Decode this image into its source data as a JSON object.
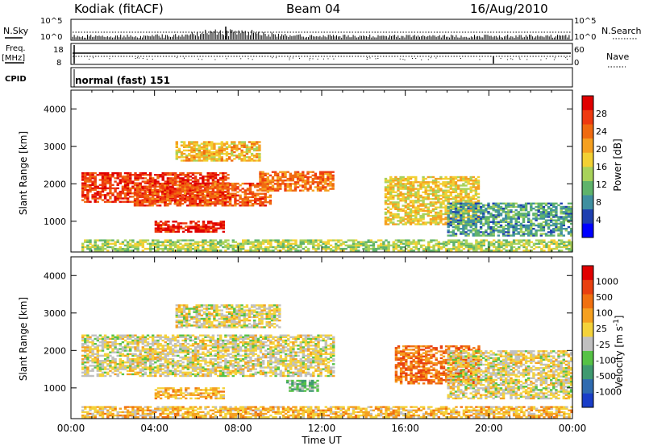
{
  "header": {
    "station": "Kodiak (fitACF)",
    "beam": "Beam 04",
    "date": "16/Aug/2010"
  },
  "strip_labels": {
    "nsky": "N.Sky",
    "nsearch": "N.Search",
    "freq": "Freq.",
    "freq_unit": "[MHz]",
    "nave": "Nave",
    "cpid": "CPID",
    "cpid_value": "normal (fast) 151",
    "sky_tick_hi": "10^5",
    "sky_tick_lo": "10^0",
    "freq_tick_hi": "18",
    "freq_tick_lo": "8",
    "nave_tick_hi": "60",
    "nave_tick_lo": "0"
  },
  "chart_data": [
    {
      "type": "heatmap",
      "panel": "power",
      "ylabel": "Slant Range [km]",
      "xlabel": "Time UT",
      "x_ticks": [
        "00:00",
        "04:00",
        "08:00",
        "12:00",
        "16:00",
        "20:00",
        "00:00"
      ],
      "y_ticks": [
        1000,
        2000,
        3000,
        4000
      ],
      "xlim_hours": [
        0,
        24
      ],
      "ylim_km": [
        180,
        4500
      ],
      "colorbar_label": "Power [dB]",
      "colorbar_ticks": [
        "4",
        "8",
        "12",
        "16",
        "20",
        "24",
        "28"
      ],
      "colorbar_colors": [
        "#0000ff",
        "#1e3fb0",
        "#3f8fa0",
        "#5fb36b",
        "#a8d25a",
        "#f2d033",
        "#f5a020",
        "#f06a10",
        "#ee3a10",
        "#e00000"
      ],
      "features": [
        {
          "t0": 0.5,
          "t1": 7.5,
          "r0": 1500,
          "r1": 2300,
          "level": 0.85
        },
        {
          "t0": 3.0,
          "t1": 9.5,
          "r0": 1400,
          "r1": 2000,
          "level": 0.8
        },
        {
          "t0": 4.0,
          "t1": 7.3,
          "r0": 700,
          "r1": 1000,
          "level": 0.92
        },
        {
          "t0": 9.0,
          "t1": 12.5,
          "r0": 1800,
          "r1": 2300,
          "level": 0.75
        },
        {
          "t0": 5.0,
          "t1": 9.0,
          "r0": 2600,
          "r1": 3100,
          "level": 0.6
        },
        {
          "t0": 15.0,
          "t1": 19.5,
          "r0": 900,
          "r1": 2200,
          "level": 0.55
        },
        {
          "t0": 0.5,
          "t1": 24,
          "r0": 200,
          "r1": 500,
          "level": 0.45
        },
        {
          "t0": 18.0,
          "t1": 24,
          "r0": 600,
          "r1": 1500,
          "level": 0.3
        }
      ]
    },
    {
      "type": "heatmap",
      "panel": "velocity",
      "ylabel": "Slant Range [km]",
      "xlabel": "Time UT",
      "x_ticks": [
        "00:00",
        "04:00",
        "08:00",
        "12:00",
        "16:00",
        "20:00",
        "00:00"
      ],
      "y_ticks": [
        1000,
        2000,
        3000,
        4000
      ],
      "xlim_hours": [
        0,
        24
      ],
      "ylim_km": [
        180,
        4500
      ],
      "colorbar_label": "Velocity [m s^-1]",
      "colorbar_ticks": [
        "1000",
        "500",
        "100",
        "25",
        "-25",
        "-100",
        "-500",
        "-1000"
      ],
      "colorbar_colors": [
        "#1a3ec8",
        "#2f6bb0",
        "#3f9a70",
        "#56c246",
        "#c0c0c0",
        "#f4d23a",
        "#f5a020",
        "#f07010",
        "#e84010",
        "#e00000"
      ],
      "features": [
        {
          "t0": 0.5,
          "t1": 12.5,
          "r0": 1300,
          "r1": 2400,
          "level": 0.5
        },
        {
          "t0": 5.0,
          "t1": 10.0,
          "r0": 2600,
          "r1": 3200,
          "level": 0.5
        },
        {
          "t0": 15.5,
          "t1": 19.5,
          "r0": 1100,
          "r1": 2100,
          "level": 0.75
        },
        {
          "t0": 4.0,
          "t1": 7.3,
          "r0": 700,
          "r1": 1000,
          "level": 0.62
        },
        {
          "t0": 0.5,
          "t1": 24,
          "r0": 200,
          "r1": 500,
          "level": 0.6
        },
        {
          "t0": 18.0,
          "t1": 24,
          "r0": 700,
          "r1": 2000,
          "level": 0.5
        },
        {
          "t0": 10.3,
          "t1": 11.8,
          "r0": 900,
          "r1": 1200,
          "level": 0.35
        }
      ]
    }
  ]
}
